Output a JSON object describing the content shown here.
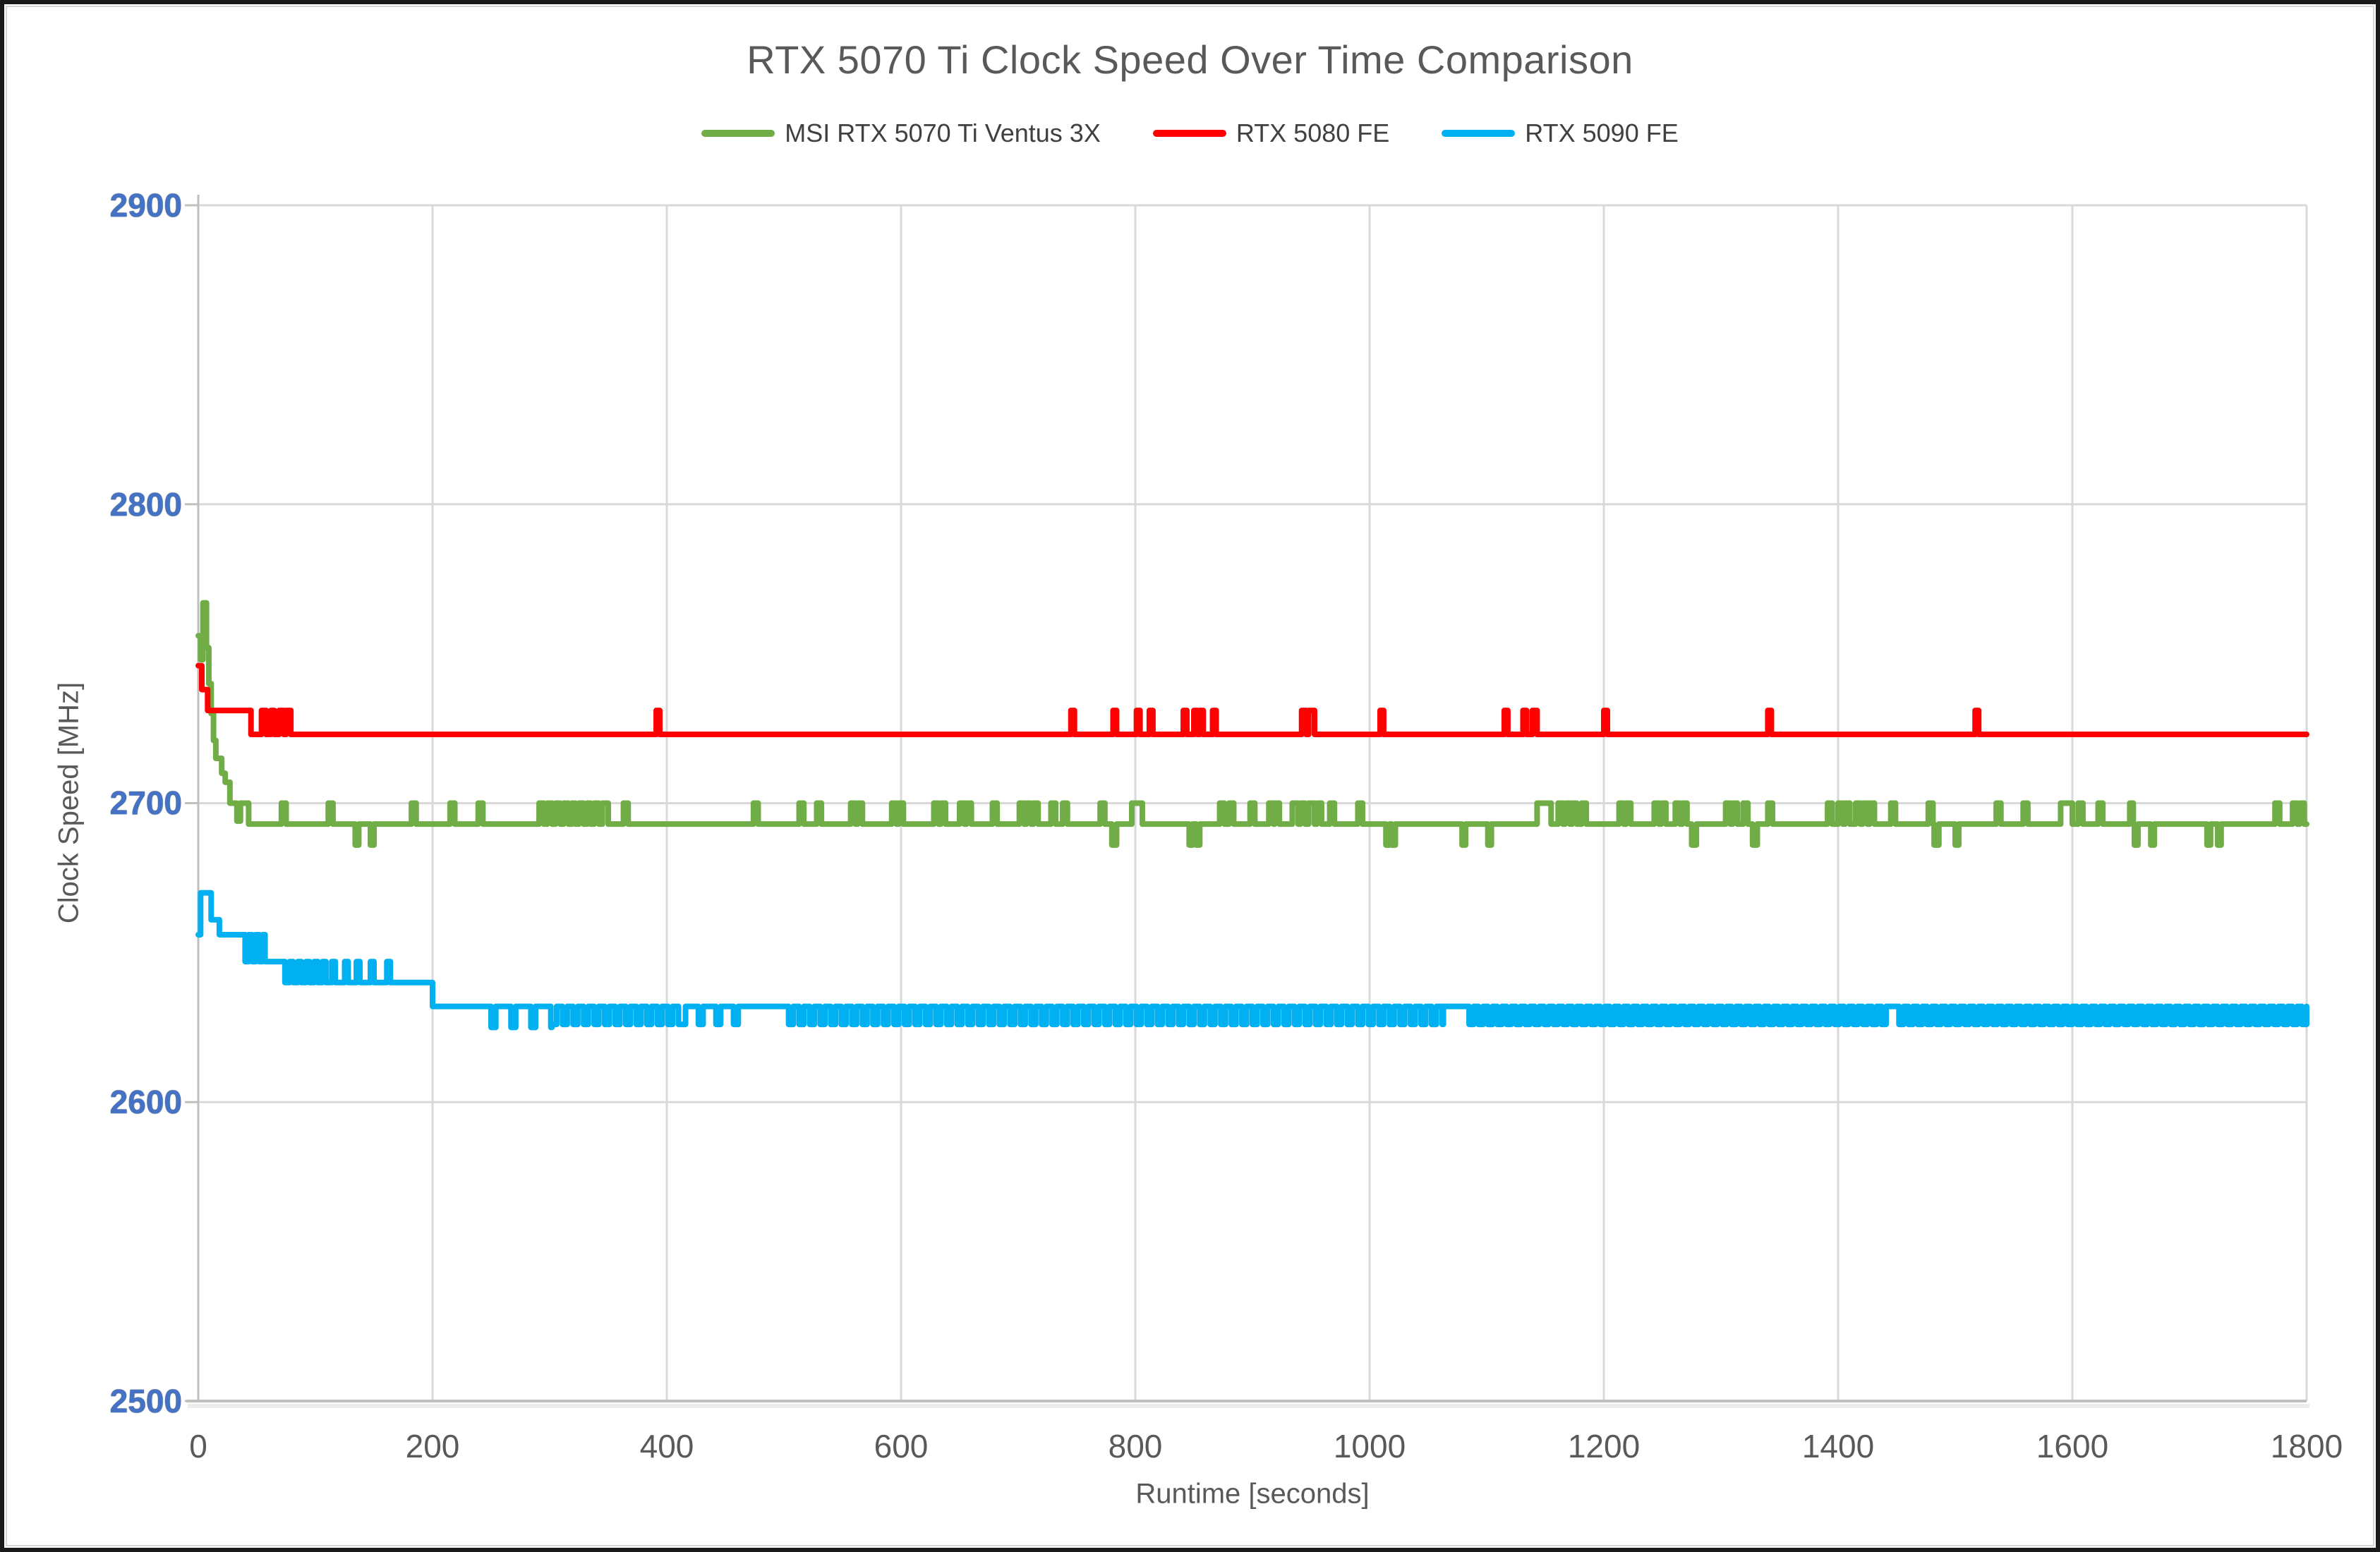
{
  "chart_data": {
    "type": "line",
    "title": "RTX 5070 Ti Clock Speed Over Time Comparison",
    "xlabel": "Runtime [seconds]",
    "ylabel": "Clock Speed [MHz]",
    "xlim": [
      0,
      1800
    ],
    "ylim": [
      2500,
      2900
    ],
    "grid": true,
    "legend_position": "top-center",
    "x_ticks": [
      0,
      200,
      400,
      600,
      800,
      1000,
      1200,
      1400,
      1600,
      1800
    ],
    "x_tick_labels": [
      "0",
      "200",
      "400",
      "600",
      "800",
      "1000",
      "1200",
      "1400",
      "1600",
      "1800"
    ],
    "y_ticks": [
      2900,
      2800,
      2700,
      2600,
      2500
    ],
    "y_tick_labels": [
      "2900",
      "2800",
      "2700",
      "2600",
      "2500"
    ],
    "styles": {
      "grid_color": "#D9D9D9",
      "axis_color": "#BFBFBF",
      "title_color": "#595959",
      "y_tick_label_color": "#4472C4",
      "x_tick_label_color": "#595959",
      "line_width": 8
    },
    "series": [
      {
        "name": "MSI RTX 5070 Ti Ventus 3X",
        "color": "#70AD47",
        "base": [
          [
            0,
            2756
          ],
          [
            2,
            2748
          ],
          [
            4,
            2767
          ],
          [
            7,
            2752
          ],
          [
            9,
            2740
          ],
          [
            11,
            2730
          ],
          [
            13,
            2721
          ],
          [
            15,
            2715
          ],
          [
            20,
            2710
          ],
          [
            23,
            2707
          ],
          [
            27,
            2700
          ],
          [
            33,
            2694
          ],
          [
            36,
            2700
          ],
          [
            43,
            2693
          ]
        ],
        "spike_value": 2700,
        "spikes": [
          [
            71,
            4
          ],
          [
            111,
            4
          ],
          [
            182,
            4
          ],
          [
            215,
            4
          ],
          [
            239,
            4
          ],
          [
            291,
            4
          ],
          [
            298,
            4
          ],
          [
            305,
            4
          ],
          [
            312,
            4
          ],
          [
            319,
            3
          ],
          [
            325,
            4
          ],
          [
            332,
            3
          ],
          [
            338,
            4
          ],
          [
            345,
            5
          ],
          [
            363,
            4
          ],
          [
            474,
            4
          ],
          [
            513,
            4
          ],
          [
            528,
            4
          ],
          [
            557,
            4
          ],
          [
            563,
            4
          ],
          [
            592,
            4
          ],
          [
            598,
            4
          ],
          [
            628,
            4
          ],
          [
            634,
            4
          ],
          [
            650,
            4
          ],
          [
            656,
            4
          ],
          [
            678,
            4
          ],
          [
            701,
            4
          ],
          [
            707,
            4
          ],
          [
            713,
            4
          ],
          [
            728,
            4
          ],
          [
            738,
            4
          ],
          [
            770,
            4
          ],
          [
            797,
            9
          ],
          [
            872,
            4
          ],
          [
            880,
            4
          ],
          [
            898,
            4
          ],
          [
            914,
            4
          ],
          [
            919,
            4
          ],
          [
            934,
            5
          ],
          [
            941,
            4
          ],
          [
            948,
            5
          ],
          [
            955,
            4
          ],
          [
            966,
            4
          ],
          [
            990,
            4
          ],
          [
            1143,
            12
          ],
          [
            1161,
            4
          ],
          [
            1167,
            4
          ],
          [
            1173,
            4
          ],
          [
            1181,
            4
          ],
          [
            1213,
            4
          ],
          [
            1219,
            4
          ],
          [
            1243,
            4
          ],
          [
            1249,
            4
          ],
          [
            1261,
            4
          ],
          [
            1267,
            4
          ],
          [
            1304,
            4
          ],
          [
            1310,
            4
          ],
          [
            1319,
            4
          ],
          [
            1340,
            4
          ],
          [
            1391,
            4
          ],
          [
            1400,
            4
          ],
          [
            1406,
            4
          ],
          [
            1415,
            4
          ],
          [
            1421,
            4
          ],
          [
            1427,
            4
          ],
          [
            1445,
            4
          ],
          [
            1477,
            4
          ],
          [
            1535,
            4
          ],
          [
            1558,
            4
          ],
          [
            1590,
            10
          ],
          [
            1605,
            4
          ],
          [
            1622,
            4
          ],
          [
            1649,
            3
          ],
          [
            1773,
            4
          ],
          [
            1788,
            4
          ],
          [
            1794,
            4
          ]
        ],
        "dip_value": 2686,
        "dips": [
          [
            134,
            3
          ],
          [
            147,
            3
          ],
          [
            780,
            4
          ],
          [
            846,
            3
          ],
          [
            852,
            3
          ],
          [
            1014,
            3
          ],
          [
            1019,
            3
          ],
          [
            1079,
            3
          ],
          [
            1101,
            3
          ],
          [
            1275,
            4
          ],
          [
            1327,
            4
          ],
          [
            1482,
            4
          ],
          [
            1500,
            3
          ],
          [
            1653,
            3
          ],
          [
            1667,
            3
          ],
          [
            1715,
            3
          ],
          [
            1724,
            3
          ]
        ],
        "oscillations": []
      },
      {
        "name": "RTX 5080 FE",
        "color": "#FF0000",
        "base": [
          [
            0,
            2746
          ],
          [
            3,
            2738
          ],
          [
            8,
            2731
          ],
          [
            45,
            2723
          ]
        ],
        "spike_value": 2731,
        "spikes": [
          [
            54,
            4
          ],
          [
            62,
            3
          ],
          [
            69,
            4
          ],
          [
            75,
            4
          ],
          [
            391,
            3
          ],
          [
            745,
            3
          ],
          [
            781,
            3
          ],
          [
            801,
            3
          ],
          [
            812,
            3
          ],
          [
            841,
            3
          ],
          [
            850,
            3
          ],
          [
            855,
            3
          ],
          [
            866,
            3
          ],
          [
            942,
            4
          ],
          [
            948,
            5
          ],
          [
            1009,
            3
          ],
          [
            1115,
            3
          ],
          [
            1131,
            3
          ],
          [
            1139,
            4
          ],
          [
            1200,
            3
          ],
          [
            1340,
            3
          ],
          [
            1517,
            3
          ]
        ],
        "dip_value": 2723,
        "dips": [],
        "oscillations": []
      },
      {
        "name": "RTX 5090 FE",
        "color": "#00B0F0",
        "base": [
          [
            0,
            2656
          ],
          [
            2,
            2670
          ],
          [
            11,
            2661
          ],
          [
            18,
            2656
          ],
          [
            40,
            2647
          ],
          [
            74,
            2640
          ],
          [
            200,
            2632
          ]
        ],
        "spike_value": 2647,
        "spikes": [
          [
            114,
            3
          ],
          [
            125,
            3
          ],
          [
            135,
            3
          ],
          [
            147,
            3
          ],
          [
            161,
            3
          ]
        ],
        "dip_value": 2625,
        "dips": [],
        "oscillations": [
          {
            "from": 40,
            "to": 56,
            "hi": 2656,
            "lo": 2647,
            "period": 6,
            "low": 3
          },
          {
            "from": 74,
            "to": 112,
            "hi": 2647,
            "lo": 2640,
            "period": 7,
            "low": 4
          },
          {
            "from": 250,
            "to": 302,
            "hi": 2632,
            "lo": 2625,
            "period": 17,
            "low": 4
          },
          {
            "from": 302,
            "to": 412,
            "hi": 2632,
            "lo": 2626,
            "period": 9,
            "low": 4
          },
          {
            "from": 412,
            "to": 470,
            "hi": 2632,
            "lo": 2626,
            "period": 15,
            "low": 4
          },
          {
            "from": 504,
            "to": 1062,
            "hi": 2632,
            "lo": 2626,
            "period": 9,
            "low": 4
          },
          {
            "from": 1085,
            "to": 1440,
            "hi": 2632,
            "lo": 2626,
            "period": 8,
            "low": 4
          },
          {
            "from": 1452,
            "to": 1800,
            "hi": 2632,
            "lo": 2626,
            "period": 8,
            "low": 4
          }
        ]
      }
    ]
  }
}
